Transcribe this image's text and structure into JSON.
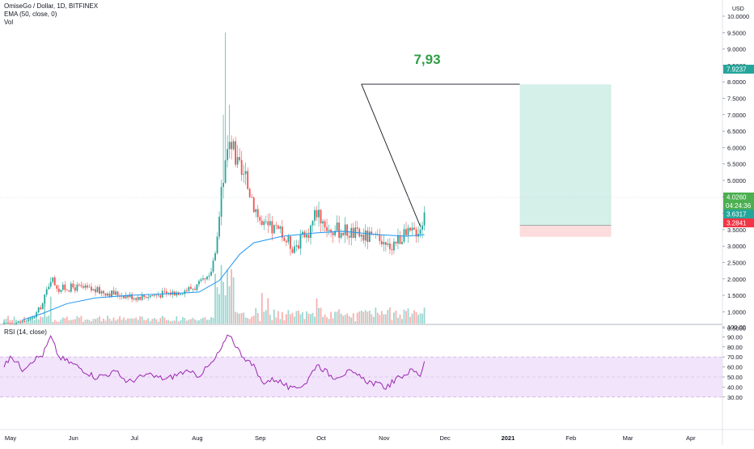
{
  "header": {
    "symbol": "OmiseGo / Dollar, 1D, BITFINEX",
    "ema_label": "EMA (50, close, 0)",
    "vol_label": "Vol"
  },
  "rsi_header": {
    "label": "RSI (14, close)"
  },
  "annotation": {
    "target_text": "7,93"
  },
  "price_axis": {
    "currency": "USD",
    "ticks": [
      "10.0000",
      "9.5000",
      "9.0000",
      "8.5000",
      "8.0000",
      "7.5000",
      "7.0000",
      "6.5000",
      "6.0000",
      "5.5000",
      "5.0000",
      "4.5000",
      "4.0000",
      "3.5000",
      "3.0000",
      "2.5000",
      "2.0000",
      "1.5000",
      "1.0000",
      "0.5000"
    ],
    "labels": {
      "target": "7.9237",
      "last": "4.0260",
      "countdown": "04:24:36",
      "entry": "3.6317",
      "stop": "3.2841"
    }
  },
  "rsi_axis": {
    "ticks": [
      "100.00",
      "90.00",
      "80.00",
      "70.00",
      "60.00",
      "50.00",
      "40.00",
      "30.00"
    ]
  },
  "time_axis": {
    "labels": [
      "May",
      "Jun",
      "Jul",
      "Aug",
      "Sep",
      "Oct",
      "Nov",
      "Dec",
      "2021",
      "Feb",
      "Mar",
      "Apr"
    ]
  },
  "colors": {
    "up": "#26a69a",
    "down": "#ef5350",
    "ema": "#2196f3",
    "rsi": "#9c27b0",
    "rsi_band": "#f1e4fb",
    "target_zone": "#d5efe9",
    "stop_zone": "#fcdcdc",
    "target_label": "#26a69a",
    "last_label": "#4caf50",
    "stop_label": "#f23645",
    "annotation_text": "#2e9e44"
  },
  "chart_data": [
    {
      "type": "candlestick",
      "title": "OmiseGo / Dollar, 1D, BITFINEX",
      "ylim": [
        0,
        10
      ],
      "y_scale": "linear",
      "grid": false,
      "ema": {
        "period": 50,
        "source": "close"
      },
      "volume": true,
      "x_range": [
        "2020-05-01",
        "2021-04-30"
      ],
      "price_path": [
        [
          "2020-05-01",
          0.62
        ],
        [
          "2020-05-08",
          0.68
        ],
        [
          "2020-05-15",
          0.78
        ],
        [
          "2020-05-20",
          1.25
        ],
        [
          "2020-05-24",
          2.05
        ],
        [
          "2020-05-28",
          1.7
        ],
        [
          "2020-06-05",
          1.75
        ],
        [
          "2020-06-15",
          1.65
        ],
        [
          "2020-06-25",
          1.55
        ],
        [
          "2020-07-05",
          1.45
        ],
        [
          "2020-07-15",
          1.52
        ],
        [
          "2020-07-25",
          1.6
        ],
        [
          "2020-08-03",
          1.75
        ],
        [
          "2020-08-10",
          2.0
        ],
        [
          "2020-08-14",
          3.1
        ],
        [
          "2020-08-17",
          5.2
        ],
        [
          "2020-08-20",
          6.4
        ],
        [
          "2020-08-24",
          5.4
        ],
        [
          "2020-08-30",
          4.7
        ],
        [
          "2020-09-05",
          3.6
        ],
        [
          "2020-09-12",
          3.5
        ],
        [
          "2020-09-20",
          3.0
        ],
        [
          "2020-09-27",
          3.3
        ],
        [
          "2020-10-02",
          4.1
        ],
        [
          "2020-10-08",
          3.5
        ],
        [
          "2020-10-15",
          3.5
        ],
        [
          "2020-10-22",
          3.35
        ],
        [
          "2020-10-29",
          3.25
        ],
        [
          "2020-11-05",
          2.95
        ],
        [
          "2020-11-12",
          3.25
        ],
        [
          "2020-11-18",
          3.4
        ],
        [
          "2020-11-22",
          3.6
        ],
        [
          "2020-11-24",
          4.0
        ]
      ],
      "ema_path": [
        [
          "2020-05-10",
          0.75
        ],
        [
          "2020-05-20",
          0.95
        ],
        [
          "2020-06-01",
          1.25
        ],
        [
          "2020-06-15",
          1.42
        ],
        [
          "2020-07-01",
          1.5
        ],
        [
          "2020-07-20",
          1.55
        ],
        [
          "2020-08-05",
          1.6
        ],
        [
          "2020-08-15",
          1.95
        ],
        [
          "2020-08-25",
          2.75
        ],
        [
          "2020-09-01",
          3.1
        ],
        [
          "2020-09-15",
          3.3
        ],
        [
          "2020-10-01",
          3.4
        ],
        [
          "2020-10-15",
          3.45
        ],
        [
          "2020-11-01",
          3.35
        ],
        [
          "2020-11-15",
          3.3
        ],
        [
          "2020-11-24",
          3.35
        ]
      ],
      "drawings": {
        "trend_line": [
          [
            "2020-10-24",
            7.93
          ],
          [
            "2020-11-22",
            3.6
          ]
        ],
        "target_line": [
          [
            "2020-10-24",
            7.93
          ],
          [
            "2021-01-10",
            7.93
          ]
        ],
        "position": {
          "start": "2021-01-10",
          "end": "2021-02-24",
          "target": 7.9237,
          "entry": 3.6317,
          "stop": 3.2841
        }
      }
    },
    {
      "type": "line",
      "title": "RSI (14, close)",
      "ylim": [
        25,
        100
      ],
      "band": [
        30,
        70
      ],
      "series": [
        {
          "name": "RSI (14, close)",
          "points": [
            [
              "2020-05-01",
              62
            ],
            [
              "2020-05-05",
              70
            ],
            [
              "2020-05-10",
              58
            ],
            [
              "2020-05-15",
              67
            ],
            [
              "2020-05-20",
              72
            ],
            [
              "2020-05-24",
              90
            ],
            [
              "2020-05-28",
              70
            ],
            [
              "2020-06-05",
              62
            ],
            [
              "2020-06-15",
              50
            ],
            [
              "2020-06-25",
              55
            ],
            [
              "2020-07-01",
              45
            ],
            [
              "2020-07-10",
              52
            ],
            [
              "2020-07-20",
              48
            ],
            [
              "2020-07-28",
              55
            ],
            [
              "2020-08-05",
              52
            ],
            [
              "2020-08-12",
              65
            ],
            [
              "2020-08-17",
              82
            ],
            [
              "2020-08-20",
              93
            ],
            [
              "2020-08-25",
              75
            ],
            [
              "2020-09-01",
              60
            ],
            [
              "2020-09-05",
              45
            ],
            [
              "2020-09-12",
              48
            ],
            [
              "2020-09-20",
              37
            ],
            [
              "2020-09-27",
              45
            ],
            [
              "2020-10-02",
              63
            ],
            [
              "2020-10-10",
              50
            ],
            [
              "2020-10-18",
              55
            ],
            [
              "2020-10-28",
              45
            ],
            [
              "2020-11-05",
              40
            ],
            [
              "2020-11-12",
              50
            ],
            [
              "2020-11-18",
              57
            ],
            [
              "2020-11-22",
              52
            ],
            [
              "2020-11-24",
              66
            ]
          ]
        }
      ]
    }
  ]
}
